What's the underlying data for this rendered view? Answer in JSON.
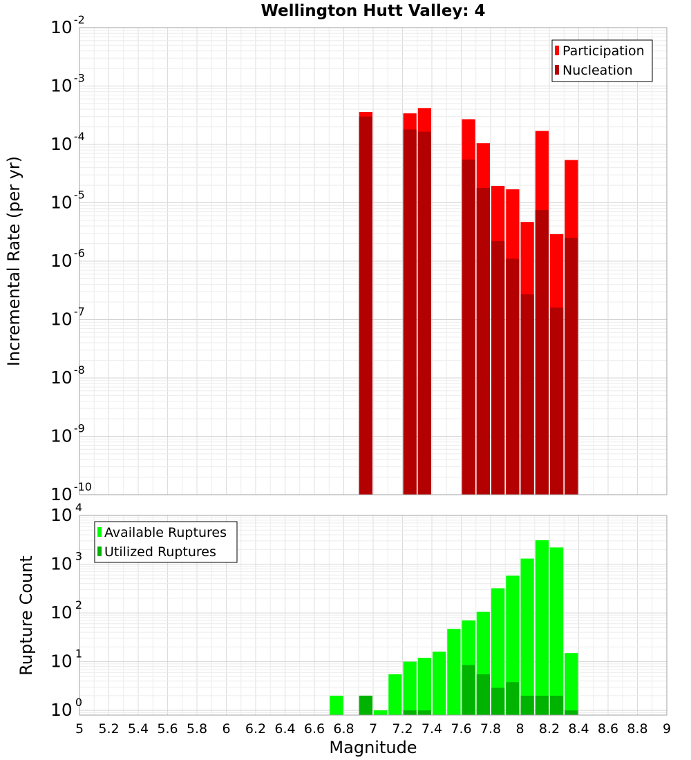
{
  "chart_data": [
    {
      "type": "bar",
      "title": "Wellington Hutt Valley: 4",
      "ylabel": "Incremental Rate (per yr)",
      "yscale": "log",
      "ylim": [
        1e-10,
        0.01
      ],
      "xlim": [
        5,
        9
      ],
      "bin_width": 0.1,
      "legend_position": "top-right",
      "yticks": [
        "10^-10",
        "10^-9",
        "10^-8",
        "10^-7",
        "10^-6",
        "10^-5",
        "10^-4",
        "10^-3",
        "10^-2"
      ],
      "x": [
        6.95,
        7.25,
        7.35,
        7.65,
        7.75,
        7.85,
        7.95,
        8.05,
        8.15,
        8.25,
        8.35
      ],
      "series": [
        {
          "name": "Participation",
          "color": "#ff0000",
          "values": [
            0.00036,
            0.00034,
            0.00042,
            0.00027,
            0.000105,
            1.95e-05,
            1.7e-05,
            4.7e-06,
            0.00017,
            2.9e-06,
            5.4e-05
          ]
        },
        {
          "name": "Nucleation",
          "color": "#b30000",
          "values": [
            0.0003,
            0.00018,
            0.000165,
            5.5e-05,
            1.8e-05,
            2.2e-06,
            1.1e-06,
            2.7e-07,
            7.5e-06,
            1.6e-07,
            2.5e-06
          ]
        }
      ]
    },
    {
      "type": "bar",
      "xlabel": "Magnitude",
      "ylabel": "Rupture Count",
      "yscale": "log",
      "ylim": [
        0.8,
        10000.0
      ],
      "xlim": [
        5,
        9
      ],
      "bin_width": 0.1,
      "legend_position": "top-left",
      "xticks": [
        "5",
        "5.2",
        "5.4",
        "5.6",
        "5.8",
        "6",
        "6.2",
        "6.4",
        "6.6",
        "6.8",
        "7",
        "7.2",
        "7.4",
        "7.6",
        "7.8",
        "8",
        "8.2",
        "8.4",
        "8.6",
        "8.8",
        "9"
      ],
      "yticks": [
        "10^0",
        "10^1",
        "10^2",
        "10^3",
        "10^4"
      ],
      "x": [
        6.75,
        6.95,
        7.05,
        7.15,
        7.25,
        7.35,
        7.45,
        7.55,
        7.65,
        7.75,
        7.85,
        7.95,
        8.05,
        8.15,
        8.25,
        8.35
      ],
      "series": [
        {
          "name": "Available Ruptures",
          "color": "#00ff00",
          "values": [
            2,
            2,
            1,
            5.5,
            10,
            12,
            16,
            47,
            70,
            105,
            320,
            580,
            1300,
            3100,
            2200,
            15
          ]
        },
        {
          "name": "Utilized Ruptures",
          "color": "#00b300",
          "values": [
            0,
            2,
            0,
            0,
            1,
            1,
            0,
            0,
            8.5,
            5.5,
            2.9,
            3.8,
            2,
            2,
            2,
            1
          ]
        }
      ]
    }
  ]
}
